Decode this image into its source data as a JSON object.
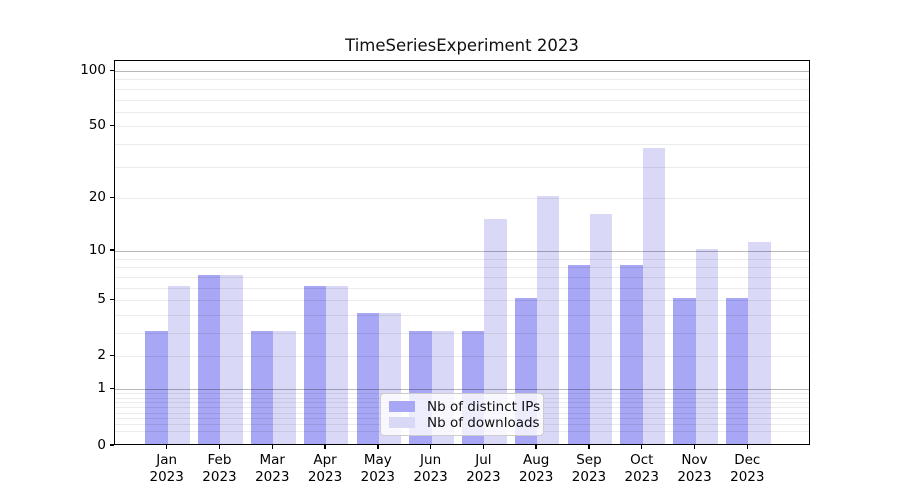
{
  "chart_data": {
    "type": "bar",
    "title": "TimeSeriesExperiment 2023",
    "categories": [
      "Jan",
      "Feb",
      "Mar",
      "Apr",
      "May",
      "Jun",
      "Jul",
      "Aug",
      "Sep",
      "Oct",
      "Nov",
      "Dec"
    ],
    "year": "2023",
    "series": [
      {
        "name": "Nb of distinct IPs",
        "color": "#a7a7f5",
        "values": [
          3,
          7,
          3,
          6,
          4,
          3,
          3,
          5,
          8,
          8,
          5,
          5
        ]
      },
      {
        "name": "Nb of downloads",
        "color": "#d9d9f7",
        "values": [
          6,
          7,
          3,
          6,
          4,
          3,
          15,
          20,
          16,
          37,
          10,
          11
        ]
      }
    ],
    "yscale": "log1p",
    "ylim": [
      0,
      114
    ],
    "yticks": [
      0,
      1,
      2,
      5,
      10,
      20,
      50,
      100
    ],
    "major_gridlines": [
      1,
      10,
      100
    ],
    "minor_gridlines": [
      0.2,
      0.3,
      0.4,
      0.5,
      0.6,
      0.7,
      0.8,
      0.9,
      2,
      3,
      4,
      5,
      6,
      7,
      8,
      9,
      20,
      30,
      40,
      50,
      60,
      70,
      80,
      90
    ],
    "grid": true,
    "legend_position": "lower center"
  },
  "colors": {
    "major_grid": "rgba(0,0,0,0.28)",
    "minor_grid": "rgba(0,0,0,0.08)",
    "spine": "#000000",
    "text": "#000000",
    "background": "#ffffff"
  }
}
